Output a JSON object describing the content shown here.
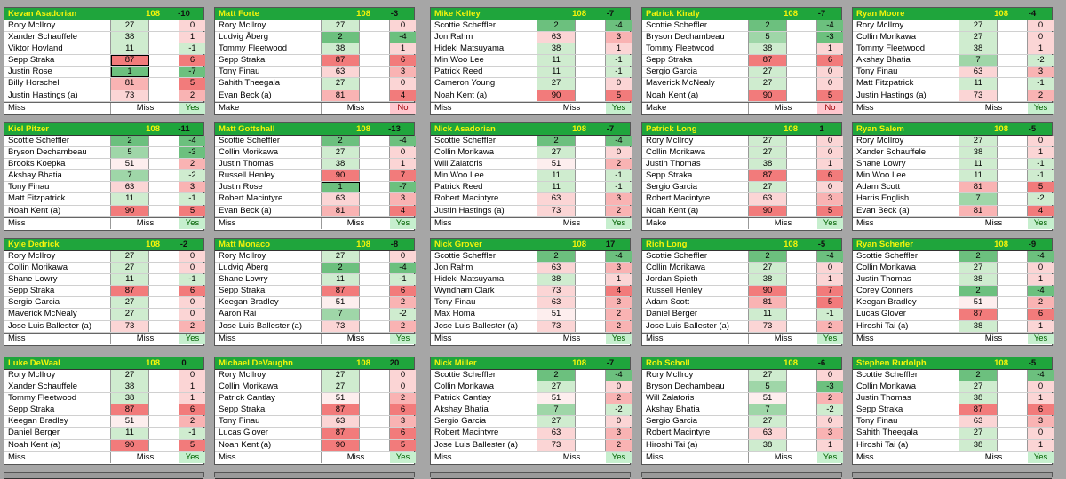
{
  "colors": {
    "header_bg": "#1fa53c",
    "header_text": "#f4f40a",
    "green_dark": "#6cc07e",
    "green_mid": "#9fd6a8",
    "green_light": "#cfeccf",
    "red": "#f27b7b",
    "red_light": "#f9b3b3",
    "red_pale": "#fbd5d5",
    "neutral": "#fdeeee",
    "yes_bg": "#c6efce",
    "no_bg": "#ffc7ce"
  },
  "cards": [
    {
      "name": "Kevan Asadorian",
      "par": "108",
      "score": "-10",
      "rows": [
        [
          "Rory McIlroy",
          "27",
          "0"
        ],
        [
          "Xander Schauffele",
          "38",
          "1"
        ],
        [
          "Viktor Hovland",
          "11",
          "-1"
        ],
        [
          "Sepp Straka",
          "87",
          "6"
        ],
        [
          "Justin Rose",
          "1",
          "-7"
        ],
        [
          "Billy Horschel",
          "81",
          "5"
        ],
        [
          "Justin Hastings (a)",
          "73",
          "2"
        ]
      ],
      "footer": [
        "Miss",
        "Miss",
        "Yes"
      ]
    },
    {
      "name": "Matt Forte",
      "par": "108",
      "score": "-3",
      "rows": [
        [
          "Rory McIlroy",
          "27",
          "0"
        ],
        [
          "Ludvig Åberg",
          "2",
          "-4"
        ],
        [
          "Tommy Fleetwood",
          "38",
          "1"
        ],
        [
          "Sepp Straka",
          "87",
          "6"
        ],
        [
          "Tony Finau",
          "63",
          "3"
        ],
        [
          "Sahith Theegala",
          "27",
          "0"
        ],
        [
          "Evan Beck (a)",
          "81",
          "4"
        ]
      ],
      "footer": [
        "Make",
        "Miss",
        "No"
      ]
    },
    {
      "name": "Mike Kelley",
      "par": "108",
      "score": "-7",
      "rows": [
        [
          "Scottie Scheffler",
          "2",
          "-4"
        ],
        [
          "Jon Rahm",
          "63",
          "3"
        ],
        [
          "Hideki Matsuyama",
          "38",
          "1"
        ],
        [
          "Min Woo Lee",
          "11",
          "-1"
        ],
        [
          "Patrick Reed",
          "11",
          "-1"
        ],
        [
          "Cameron Young",
          "27",
          "0"
        ],
        [
          "Noah Kent (a)",
          "90",
          "5"
        ]
      ],
      "footer": [
        "Miss",
        "Miss",
        "Yes"
      ]
    },
    {
      "name": "Patrick Kiraly",
      "par": "108",
      "score": "-7",
      "rows": [
        [
          "Scottie Scheffler",
          "2",
          "-4"
        ],
        [
          "Bryson Dechambeau",
          "5",
          "-3"
        ],
        [
          "Tommy Fleetwood",
          "38",
          "1"
        ],
        [
          "Sepp Straka",
          "87",
          "6"
        ],
        [
          "Sergio Garcia",
          "27",
          "0"
        ],
        [
          "Maverick McNealy",
          "27",
          "0"
        ],
        [
          "Noah Kent (a)",
          "90",
          "5"
        ]
      ],
      "footer": [
        "Make",
        "Miss",
        "No"
      ]
    },
    {
      "name": "Ryan Moore",
      "par": "108",
      "score": "-4",
      "rows": [
        [
          "Rory McIlroy",
          "27",
          "0"
        ],
        [
          "Collin Morikawa",
          "27",
          "0"
        ],
        [
          "Tommy Fleetwood",
          "38",
          "1"
        ],
        [
          "Akshay Bhatia",
          "7",
          "-2"
        ],
        [
          "Tony Finau",
          "63",
          "3"
        ],
        [
          "Matt Fitzpatrick",
          "11",
          "-1"
        ],
        [
          "Justin Hastings (a)",
          "73",
          "2"
        ]
      ],
      "footer": [
        "Miss",
        "Miss",
        "Yes"
      ]
    },
    {
      "name": "Kiel Pitzer",
      "par": "108",
      "score": "-11",
      "rows": [
        [
          "Scottie Scheffler",
          "2",
          "-4"
        ],
        [
          "Bryson Dechambeau",
          "5",
          "-3"
        ],
        [
          "Brooks Koepka",
          "51",
          "2"
        ],
        [
          "Akshay Bhatia",
          "7",
          "-2"
        ],
        [
          "Tony Finau",
          "63",
          "3"
        ],
        [
          "Matt Fitzpatrick",
          "11",
          "-1"
        ],
        [
          "Noah Kent (a)",
          "90",
          "5"
        ]
      ],
      "footer": [
        "Miss",
        "Miss",
        "Yes"
      ]
    },
    {
      "name": "Matt Gottshall",
      "par": "108",
      "score": "-13",
      "rows": [
        [
          "Scottie Scheffler",
          "2",
          "-4"
        ],
        [
          "Collin Morikawa",
          "27",
          "0"
        ],
        [
          "Justin Thomas",
          "38",
          "1"
        ],
        [
          "Russell Henley",
          "90",
          "7"
        ],
        [
          "Justin Rose",
          "1",
          "-7"
        ],
        [
          "Robert Macintyre",
          "63",
          "3"
        ],
        [
          "Evan Beck (a)",
          "81",
          "4"
        ]
      ],
      "footer": [
        "Miss",
        "Miss",
        "Yes"
      ]
    },
    {
      "name": "Nick Asadorian",
      "par": "108",
      "score": "-7",
      "rows": [
        [
          "Scottie Scheffler",
          "2",
          "-4"
        ],
        [
          "Collin Morikawa",
          "27",
          "0"
        ],
        [
          "Will Zalatoris",
          "51",
          "2"
        ],
        [
          "Min Woo Lee",
          "11",
          "-1"
        ],
        [
          "Patrick Reed",
          "11",
          "-1"
        ],
        [
          "Robert Macintyre",
          "63",
          "3"
        ],
        [
          "Justin Hastings (a)",
          "73",
          "2"
        ]
      ],
      "footer": [
        "Miss",
        "Miss",
        "Yes"
      ]
    },
    {
      "name": "Patrick Long",
      "par": "108",
      "score": "1",
      "rows": [
        [
          "Rory McIlroy",
          "27",
          "0"
        ],
        [
          "Collin Morikawa",
          "27",
          "0"
        ],
        [
          "Justin Thomas",
          "38",
          "1"
        ],
        [
          "Sepp Straka",
          "87",
          "6"
        ],
        [
          "Sergio Garcia",
          "27",
          "0"
        ],
        [
          "Robert Macintyre",
          "63",
          "3"
        ],
        [
          "Noah Kent (a)",
          "90",
          "5"
        ]
      ],
      "footer": [
        "Make",
        "Miss",
        "Yes"
      ]
    },
    {
      "name": "Ryan Salem",
      "par": "108",
      "score": "-5",
      "rows": [
        [
          "Rory McIlroy",
          "27",
          "0"
        ],
        [
          "Xander Schauffele",
          "38",
          "1"
        ],
        [
          "Shane Lowry",
          "11",
          "-1"
        ],
        [
          "Min Woo Lee",
          "11",
          "-1"
        ],
        [
          "Adam Scott",
          "81",
          "5"
        ],
        [
          "Harris English",
          "7",
          "-2"
        ],
        [
          "Evan Beck (a)",
          "81",
          "4"
        ]
      ],
      "footer": [
        "Miss",
        "Miss",
        "Yes"
      ]
    },
    {
      "name": "Kyle Dedrick",
      "par": "108",
      "score": "-2",
      "rows": [
        [
          "Rory McIlroy",
          "27",
          "0"
        ],
        [
          "Collin Morikawa",
          "27",
          "0"
        ],
        [
          "Shane Lowry",
          "11",
          "-1"
        ],
        [
          "Sepp Straka",
          "87",
          "6"
        ],
        [
          "Sergio Garcia",
          "27",
          "0"
        ],
        [
          "Maverick McNealy",
          "27",
          "0"
        ],
        [
          "Jose Luis Ballester (a)",
          "73",
          "2"
        ]
      ],
      "footer": [
        "Miss",
        "Miss",
        "Yes"
      ]
    },
    {
      "name": "Matt Monaco",
      "par": "108",
      "score": "-8",
      "rows": [
        [
          "Rory McIlroy",
          "27",
          "0"
        ],
        [
          "Ludvig Åberg",
          "2",
          "-4"
        ],
        [
          "Shane Lowry",
          "11",
          "-1"
        ],
        [
          "Sepp Straka",
          "87",
          "6"
        ],
        [
          "Keegan Bradley",
          "51",
          "2"
        ],
        [
          "Aaron Rai",
          "7",
          "-2"
        ],
        [
          "Jose Luis Ballester (a)",
          "73",
          "2"
        ]
      ],
      "footer": [
        "Miss",
        "Miss",
        "Yes"
      ]
    },
    {
      "name": "Nick Grover",
      "par": "108",
      "score": "17",
      "rows": [
        [
          "Scottie Scheffler",
          "2",
          "-4"
        ],
        [
          "Jon Rahm",
          "63",
          "3"
        ],
        [
          "Hideki Matsuyama",
          "38",
          "1"
        ],
        [
          "Wyndham Clark",
          "73",
          "4"
        ],
        [
          "Tony Finau",
          "63",
          "3"
        ],
        [
          "Max Homa",
          "51",
          "2"
        ],
        [
          "Jose Luis Ballester (a)",
          "73",
          "2"
        ]
      ],
      "footer": [
        "Miss",
        "Miss",
        "Yes"
      ]
    },
    {
      "name": "Rich Long",
      "par": "108",
      "score": "-5",
      "rows": [
        [
          "Scottie Scheffler",
          "2",
          "-4"
        ],
        [
          "Collin Morikawa",
          "27",
          "0"
        ],
        [
          "Jordan Spieth",
          "38",
          "1"
        ],
        [
          "Russell Henley",
          "90",
          "7"
        ],
        [
          "Adam Scott",
          "81",
          "5"
        ],
        [
          "Daniel Berger",
          "11",
          "-1"
        ],
        [
          "Jose Luis Ballester (a)",
          "73",
          "2"
        ]
      ],
      "footer": [
        "Miss",
        "Miss",
        "Yes"
      ]
    },
    {
      "name": "Ryan Scherler",
      "par": "108",
      "score": "-9",
      "rows": [
        [
          "Scottie Scheffler",
          "2",
          "-4"
        ],
        [
          "Collin Morikawa",
          "27",
          "0"
        ],
        [
          "Justin Thomas",
          "38",
          "1"
        ],
        [
          "Corey Conners",
          "2",
          "-4"
        ],
        [
          "Keegan Bradley",
          "51",
          "2"
        ],
        [
          "Lucas Glover",
          "87",
          "6"
        ],
        [
          "Hiroshi Tai (a)",
          "38",
          "1"
        ]
      ],
      "footer": [
        "Miss",
        "Miss",
        "Yes"
      ]
    },
    {
      "name": "Luke DeWaal",
      "par": "108",
      "score": "0",
      "rows": [
        [
          "Rory McIlroy",
          "27",
          "0"
        ],
        [
          "Xander Schauffele",
          "38",
          "1"
        ],
        [
          "Tommy Fleetwood",
          "38",
          "1"
        ],
        [
          "Sepp Straka",
          "87",
          "6"
        ],
        [
          "Keegan Bradley",
          "51",
          "2"
        ],
        [
          "Daniel Berger",
          "11",
          "-1"
        ],
        [
          "Noah Kent (a)",
          "90",
          "5"
        ]
      ],
      "footer": [
        "Miss",
        "Miss",
        "Yes"
      ]
    },
    {
      "name": "Michael DeVaughn",
      "par": "108",
      "score": "20",
      "rows": [
        [
          "Rory McIlroy",
          "27",
          "0"
        ],
        [
          "Collin Morikawa",
          "27",
          "0"
        ],
        [
          "Patrick Cantlay",
          "51",
          "2"
        ],
        [
          "Sepp Straka",
          "87",
          "6"
        ],
        [
          "Tony Finau",
          "63",
          "3"
        ],
        [
          "Lucas Glover",
          "87",
          "6"
        ],
        [
          "Noah Kent (a)",
          "90",
          "5"
        ]
      ],
      "footer": [
        "Miss",
        "Miss",
        "Yes"
      ]
    },
    {
      "name": "Nick Miller",
      "par": "108",
      "score": "-7",
      "rows": [
        [
          "Scottie Scheffler",
          "2",
          "-4"
        ],
        [
          "Collin Morikawa",
          "27",
          "0"
        ],
        [
          "Patrick Cantlay",
          "51",
          "2"
        ],
        [
          "Akshay Bhatia",
          "7",
          "-2"
        ],
        [
          "Sergio Garcia",
          "27",
          "0"
        ],
        [
          "Robert Macintyre",
          "63",
          "3"
        ],
        [
          "Jose Luis Ballester (a)",
          "73",
          "2"
        ]
      ],
      "footer": [
        "Miss",
        "Miss",
        "Yes"
      ]
    },
    {
      "name": "Rob Scholl",
      "par": "108",
      "score": "-6",
      "rows": [
        [
          "Rory McIlroy",
          "27",
          "0"
        ],
        [
          "Bryson Dechambeau",
          "5",
          "-3"
        ],
        [
          "Will Zalatoris",
          "51",
          "2"
        ],
        [
          "Akshay Bhatia",
          "7",
          "-2"
        ],
        [
          "Sergio Garcia",
          "27",
          "0"
        ],
        [
          "Robert Macintyre",
          "63",
          "3"
        ],
        [
          "Hiroshi Tai (a)",
          "38",
          "1"
        ]
      ],
      "footer": [
        "Miss",
        "Miss",
        "Yes"
      ]
    },
    {
      "name": "Stephen Rudolph",
      "par": "108",
      "score": "-5",
      "rows": [
        [
          "Scottie Scheffler",
          "2",
          "-4"
        ],
        [
          "Collin Morikawa",
          "27",
          "0"
        ],
        [
          "Justin Thomas",
          "38",
          "1"
        ],
        [
          "Sepp Straka",
          "87",
          "6"
        ],
        [
          "Tony Finau",
          "63",
          "3"
        ],
        [
          "Sahith Theegala",
          "27",
          "0"
        ],
        [
          "Hiroshi Tai (a)",
          "38",
          "1"
        ]
      ],
      "footer": [
        "Miss",
        "Miss",
        "Yes"
      ]
    }
  ]
}
